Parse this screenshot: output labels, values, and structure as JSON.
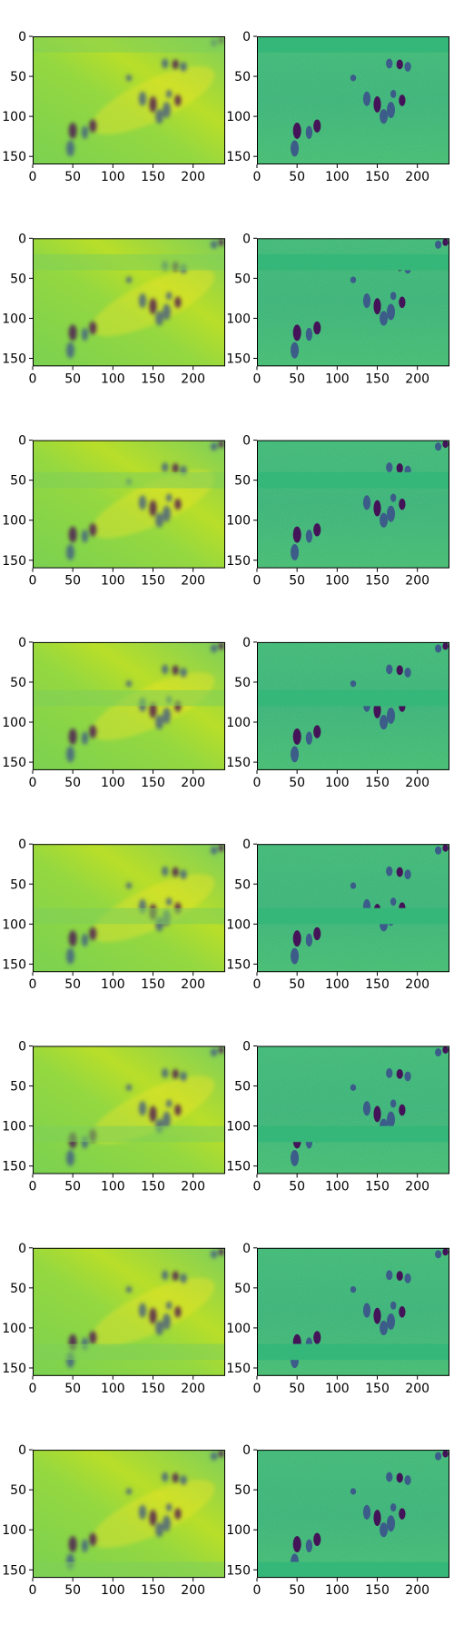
{
  "chart_data": {
    "type": "heatmap",
    "colormap": "viridis",
    "grid": false,
    "layout": {
      "rows": 8,
      "cols": 2
    },
    "image_extent": {
      "x": [
        0,
        240
      ],
      "y": [
        0,
        160
      ]
    },
    "xlim": [
      0,
      240
    ],
    "ylim": [
      160,
      0
    ],
    "x_ticks": [
      0,
      50,
      100,
      150,
      200
    ],
    "y_ticks": [
      0,
      50,
      100,
      150
    ],
    "x_tick_labels": [
      "0",
      "50",
      "100",
      "150",
      "200"
    ],
    "y_tick_labels": [
      "0",
      "50",
      "100",
      "150"
    ],
    "colors": {
      "viridis_dark": "#440154",
      "viridis_blue": "#3b528b",
      "viridis_teal": "#21918c",
      "viridis_green": "#5ec962",
      "viridis_yellow": "#fde725",
      "reconstruction_base": "#7fcf5a",
      "residual_base": "#3fb57a",
      "residual_band": "#35b779"
    },
    "panels": [
      {
        "row": 1,
        "col": 1,
        "content": "reconstruction",
        "masked_band_y": [
          0,
          20
        ]
      },
      {
        "row": 1,
        "col": 2,
        "content": "residual",
        "masked_band_y": [
          0,
          20
        ]
      },
      {
        "row": 2,
        "col": 1,
        "content": "reconstruction",
        "masked_band_y": [
          20,
          40
        ]
      },
      {
        "row": 2,
        "col": 2,
        "content": "residual",
        "masked_band_y": [
          20,
          40
        ]
      },
      {
        "row": 3,
        "col": 1,
        "content": "reconstruction",
        "masked_band_y": [
          40,
          60
        ]
      },
      {
        "row": 3,
        "col": 2,
        "content": "residual",
        "masked_band_y": [
          40,
          60
        ]
      },
      {
        "row": 4,
        "col": 1,
        "content": "reconstruction",
        "masked_band_y": [
          60,
          80
        ]
      },
      {
        "row": 4,
        "col": 2,
        "content": "residual",
        "masked_band_y": [
          60,
          80
        ]
      },
      {
        "row": 5,
        "col": 1,
        "content": "reconstruction",
        "masked_band_y": [
          80,
          100
        ]
      },
      {
        "row": 5,
        "col": 2,
        "content": "residual",
        "masked_band_y": [
          80,
          100
        ]
      },
      {
        "row": 6,
        "col": 1,
        "content": "reconstruction",
        "masked_band_y": [
          100,
          120
        ]
      },
      {
        "row": 6,
        "col": 2,
        "content": "residual",
        "masked_band_y": [
          100,
          120
        ]
      },
      {
        "row": 7,
        "col": 1,
        "content": "reconstruction",
        "masked_band_y": [
          120,
          140
        ]
      },
      {
        "row": 7,
        "col": 2,
        "content": "residual",
        "masked_band_y": [
          120,
          140
        ]
      },
      {
        "row": 8,
        "col": 1,
        "content": "reconstruction",
        "masked_band_y": [
          140,
          160
        ]
      },
      {
        "row": 8,
        "col": 2,
        "content": "residual",
        "masked_band_y": [
          140,
          160
        ]
      }
    ],
    "scene_blobs": [
      {
        "x": 50,
        "y": 118,
        "w": 8,
        "h": 18
      },
      {
        "x": 47,
        "y": 140,
        "w": 8,
        "h": 18
      },
      {
        "x": 65,
        "y": 120,
        "w": 6,
        "h": 14
      },
      {
        "x": 75,
        "y": 112,
        "w": 7,
        "h": 14
      },
      {
        "x": 120,
        "y": 52,
        "w": 5,
        "h": 6
      },
      {
        "x": 137,
        "y": 78,
        "w": 7,
        "h": 16
      },
      {
        "x": 150,
        "y": 85,
        "w": 7,
        "h": 18
      },
      {
        "x": 158,
        "y": 100,
        "w": 8,
        "h": 16
      },
      {
        "x": 167,
        "y": 92,
        "w": 8,
        "h": 18
      },
      {
        "x": 181,
        "y": 80,
        "w": 6,
        "h": 12
      },
      {
        "x": 170,
        "y": 72,
        "w": 5,
        "h": 8
      },
      {
        "x": 165,
        "y": 34,
        "w": 6,
        "h": 10
      },
      {
        "x": 178,
        "y": 35,
        "w": 6,
        "h": 10
      },
      {
        "x": 188,
        "y": 38,
        "w": 6,
        "h": 10
      },
      {
        "x": 226,
        "y": 8,
        "w": 6,
        "h": 8
      },
      {
        "x": 235,
        "y": 5,
        "w": 5,
        "h": 7
      }
    ]
  }
}
